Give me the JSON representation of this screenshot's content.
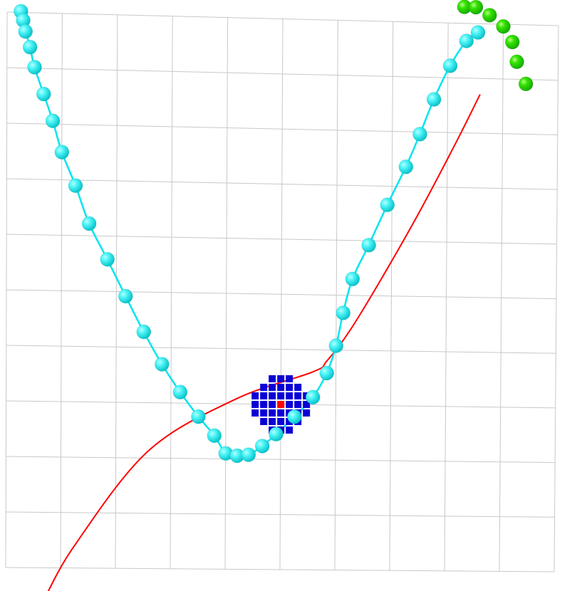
{
  "chart_data": {
    "type": "scatter",
    "title": "",
    "xlabel": "",
    "ylabel": "",
    "grid": true,
    "colors": {
      "background": "#ffffff",
      "grid": "#c8c8c8",
      "cyan_path": "#00e5ee",
      "cyan_marker": "#1fe4e8",
      "green_marker": "#22cc00",
      "red_curve": "#ff0000",
      "blue_cluster": "#0a00d6",
      "cluster_center": "#ff0000"
    },
    "series": [
      {
        "kind": "curve",
        "color": "#ff0000",
        "points": [
          [
            0.8,
            6.8
          ],
          [
            1.5,
            12.0
          ],
          [
            3.1,
            20.6
          ],
          [
            5.0,
            25.4
          ],
          [
            6.7,
            28.0
          ],
          [
            7.0,
            29.0
          ],
          [
            7.5,
            31.8
          ],
          [
            8.2,
            36.7
          ],
          [
            9.0,
            42.7
          ],
          [
            9.8,
            49.2
          ],
          [
            10.3,
            53.5
          ]
        ]
      },
      {
        "kind": "connected_markers",
        "color": "#00e5ee",
        "points": [
          [
            0.3,
            60.1
          ],
          [
            0.35,
            59.3
          ],
          [
            0.4,
            58.3
          ],
          [
            0.5,
            56.9
          ],
          [
            0.6,
            55.1
          ],
          [
            0.8,
            52.7
          ],
          [
            1.0,
            50.3
          ],
          [
            1.2,
            47.5
          ],
          [
            1.5,
            44.5
          ],
          [
            1.8,
            41.1
          ],
          [
            2.2,
            37.9
          ],
          [
            2.6,
            34.6
          ],
          [
            3.0,
            31.4
          ],
          [
            3.4,
            28.5
          ],
          [
            3.8,
            26.0
          ],
          [
            4.2,
            23.8
          ],
          [
            4.55,
            22.1
          ],
          [
            4.8,
            20.5
          ],
          [
            5.05,
            20.3
          ],
          [
            5.3,
            20.4
          ],
          [
            5.6,
            21.2
          ],
          [
            5.9,
            22.3
          ],
          [
            6.3,
            23.9
          ],
          [
            6.7,
            25.7
          ],
          [
            7.0,
            27.9
          ],
          [
            7.2,
            30.4
          ],
          [
            7.35,
            33.4
          ],
          [
            7.55,
            36.5
          ],
          [
            7.9,
            39.6
          ],
          [
            8.3,
            43.3
          ],
          [
            8.7,
            46.8
          ],
          [
            9.0,
            49.8
          ],
          [
            9.3,
            53.0
          ],
          [
            9.65,
            56.1
          ],
          [
            10.0,
            58.4
          ],
          [
            10.25,
            59.2
          ]
        ]
      },
      {
        "kind": "markers",
        "color": "#22cc00",
        "points": [
          [
            9.95,
            61.5
          ],
          [
            10.2,
            61.5
          ],
          [
            10.5,
            60.8
          ],
          [
            10.8,
            59.8
          ],
          [
            11.0,
            58.4
          ],
          [
            11.1,
            56.6
          ],
          [
            11.3,
            54.6
          ]
        ]
      }
    ],
    "cluster": {
      "center": [
        6.0,
        25.0
      ],
      "fill": "#0a00d6",
      "center_fill": "#ff0000"
    }
  }
}
